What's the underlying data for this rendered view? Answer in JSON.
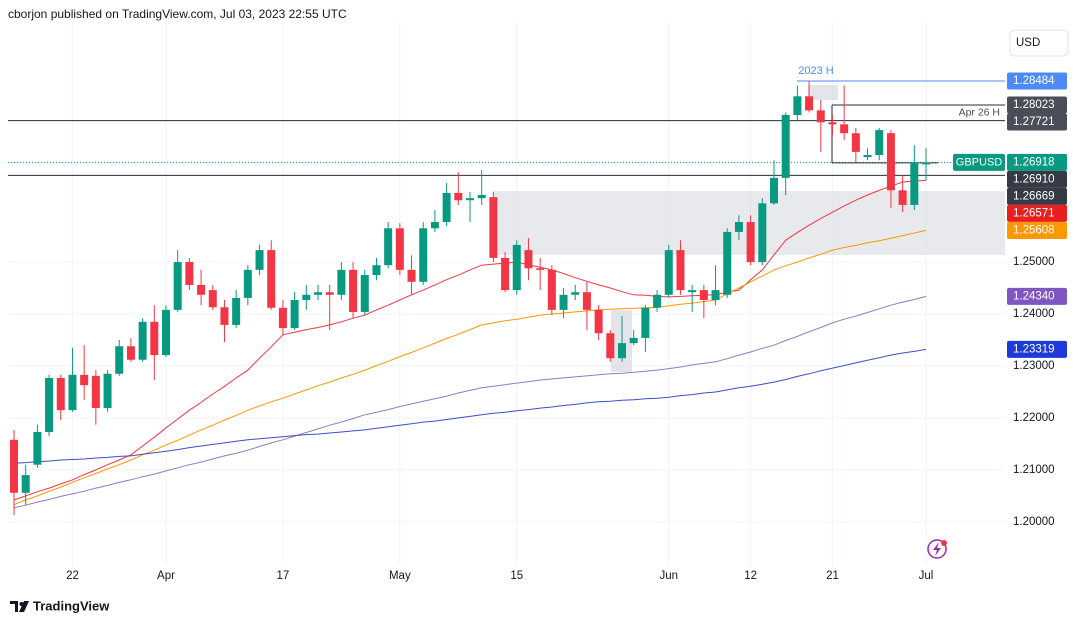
{
  "header": {
    "title": "cborjon published on TradingView.com, Jul 03, 2023 22:55 UTC"
  },
  "footer": {
    "brand": "TradingView"
  },
  "chart_data": {
    "type": "candlestick",
    "symbol": "GBPUSD",
    "currency": "USD",
    "categories": [
      null,
      null,
      null,
      null,
      null,
      "22",
      null,
      null,
      null,
      null,
      null,
      null,
      null,
      "Apr",
      null,
      null,
      null,
      null,
      null,
      null,
      null,
      null,
      null,
      "17",
      null,
      null,
      null,
      null,
      null,
      null,
      null,
      null,
      null,
      "May",
      null,
      null,
      null,
      null,
      null,
      null,
      null,
      null,
      null,
      "15",
      null,
      null,
      null,
      null,
      null,
      null,
      null,
      null,
      null,
      null,
      null,
      null,
      "Jun",
      null,
      null,
      null,
      null,
      null,
      null,
      "12",
      null,
      null,
      null,
      null,
      null,
      null,
      "21",
      null,
      null,
      null,
      null,
      null,
      null,
      null,
      "Jul"
    ],
    "open": [
      1.2158,
      1.2056,
      1.211,
      1.2173,
      1.2277,
      1.2215,
      1.2283,
      1.2281,
      1.2219,
      1.2285,
      1.2338,
      1.2312,
      1.2385,
      1.2321,
      1.2408,
      1.25,
      1.2456,
      1.2446,
      1.2413,
      1.2379,
      1.2431,
      1.2485,
      1.2523,
      1.2412,
      1.2373,
      1.2427,
      1.2437,
      1.2442,
      1.2437,
      1.2485,
      1.2404,
      1.2475,
      1.2494,
      1.2565,
      1.2485,
      1.2462,
      1.2565,
      1.2577,
      1.2633,
      1.2619,
      1.2623,
      1.2625,
      1.2508,
      1.2446,
      1.2523,
      1.2488,
      1.2485,
      1.2408,
      1.2437,
      1.2442,
      1.2408,
      1.2363,
      1.2315,
      1.2344,
      1.2354,
      1.2412,
      1.2437,
      1.2523,
      1.2442,
      1.2446,
      1.2427,
      1.2437,
      1.2558,
      1.2577,
      1.25,
      1.2613,
      1.2662,
      1.2783,
      1.2819,
      1.2792,
      1.2769,
      1.2765,
      1.2748,
      1.2702,
      1.2706,
      1.2748,
      1.2638,
      1.261,
      1.2688
    ],
    "high": [
      1.2177,
      1.211,
      1.2187,
      1.2283,
      1.2283,
      1.2335,
      1.234,
      1.2292,
      1.2292,
      1.235,
      1.2354,
      1.2392,
      1.2417,
      1.2417,
      1.2523,
      1.2508,
      1.2485,
      1.2456,
      1.2427,
      1.2446,
      1.2494,
      1.2533,
      1.2542,
      1.2427,
      1.2442,
      1.2456,
      1.2456,
      1.2456,
      1.25,
      1.25,
      1.2485,
      1.2508,
      1.2577,
      1.2575,
      1.2513,
      1.2577,
      1.26,
      1.2652,
      1.2673,
      1.2635,
      1.2677,
      1.2635,
      1.2519,
      1.2542,
      1.2546,
      1.2508,
      1.2494,
      1.245,
      1.2456,
      1.2462,
      1.2417,
      1.2369,
      1.2396,
      1.2369,
      1.2417,
      1.2446,
      1.2533,
      1.2542,
      1.2456,
      1.2456,
      1.2494,
      1.2565,
      1.259,
      1.259,
      1.2623,
      1.2696,
      1.2788,
      1.284,
      1.2848,
      1.2812,
      1.2783,
      1.284,
      1.2758,
      1.2719,
      1.2758,
      1.2754,
      1.2667,
      1.2725,
      1.2719
    ],
    "low": [
      1.2013,
      1.2033,
      1.2104,
      1.2165,
      1.2196,
      1.2212,
      1.2235,
      1.2187,
      1.2212,
      1.2281,
      1.2308,
      1.2308,
      1.2273,
      1.2317,
      1.2404,
      1.2446,
      1.2417,
      1.2408,
      1.2346,
      1.2373,
      1.2417,
      1.2475,
      1.2408,
      1.236,
      1.2369,
      1.2408,
      1.2427,
      1.2369,
      1.2427,
      1.2392,
      1.2398,
      1.2465,
      1.2488,
      1.2475,
      1.2437,
      1.2456,
      1.2558,
      1.2569,
      1.261,
      1.2577,
      1.261,
      1.25,
      1.2442,
      1.2437,
      1.2465,
      1.2446,
      1.2398,
      1.2392,
      1.2427,
      1.2369,
      1.235,
      1.2308,
      1.2308,
      1.234,
      1.2327,
      1.2404,
      1.2431,
      1.2437,
      1.2404,
      1.2392,
      1.2417,
      1.2431,
      1.2542,
      1.2494,
      1.2494,
      1.261,
      1.2629,
      1.2773,
      1.2788,
      1.2712,
      1.2744,
      1.2735,
      1.2692,
      1.2696,
      1.2696,
      1.2604,
      1.2596,
      1.26,
      1.2658
    ],
    "close": [
      1.2056,
      1.209,
      1.2173,
      1.2277,
      1.2215,
      1.2283,
      1.2263,
      1.2219,
      1.2285,
      1.2338,
      1.2312,
      1.2385,
      1.2321,
      1.2408,
      1.25,
      1.2456,
      1.2437,
      1.2413,
      1.2379,
      1.2431,
      1.2485,
      1.2523,
      1.2412,
      1.2373,
      1.2427,
      1.2437,
      1.2442,
      1.2437,
      1.2485,
      1.2404,
      1.2475,
      1.2494,
      1.2565,
      1.2485,
      1.2462,
      1.2565,
      1.2577,
      1.2633,
      1.2619,
      1.2623,
      1.2629,
      1.2508,
      1.2446,
      1.2533,
      1.2488,
      1.2485,
      1.2408,
      1.2437,
      1.2442,
      1.2408,
      1.2363,
      1.2315,
      1.2344,
      1.2354,
      1.2412,
      1.2437,
      1.2523,
      1.2446,
      1.2446,
      1.2427,
      1.2446,
      1.2558,
      1.2577,
      1.25,
      1.2613,
      1.2662,
      1.2783,
      1.2819,
      1.2792,
      1.2769,
      1.2765,
      1.2748,
      1.2712,
      1.2706,
      1.2754,
      1.2638,
      1.261,
      1.2692,
      1.26918
    ],
    "up_color": "#089981",
    "down_color": "#f23645",
    "moving_averages": [
      {
        "color": "#f23645",
        "values": [
          1.2042,
          1.205,
          1.2058,
          1.2065,
          1.2073,
          1.2081,
          1.2091,
          1.21,
          1.211,
          1.2119,
          1.2129,
          1.2146,
          1.2163,
          1.2181,
          1.2198,
          1.2215,
          1.223,
          1.2246,
          1.2261,
          1.2277,
          1.2292,
          1.2315,
          1.2337,
          1.236,
          1.2365,
          1.237,
          1.2374,
          1.2379,
          1.2385,
          1.2392,
          1.2398,
          1.2408,
          1.2417,
          1.2427,
          1.2437,
          1.2446,
          1.2456,
          1.2466,
          1.2475,
          1.2485,
          1.2494,
          1.2496,
          1.2498,
          1.25,
          1.2495,
          1.249,
          1.2485,
          1.2478,
          1.247,
          1.2463,
          1.2456,
          1.245,
          1.2443,
          1.2437,
          1.2436,
          1.2434,
          1.2433,
          1.2434,
          1.2435,
          1.2436,
          1.2437,
          1.2442,
          1.2446,
          1.2466,
          1.2485,
          1.2514,
          1.2542,
          1.2557,
          1.2571,
          1.2584,
          1.2596,
          1.2608,
          1.2619,
          1.2629,
          1.2638,
          1.2646,
          1.2654,
          1.2656,
          1.2657
        ]
      },
      {
        "color": "#ff9800",
        "values": [
          1.2033,
          1.2042,
          1.205,
          1.2059,
          1.2067,
          1.2076,
          1.2085,
          1.2093,
          1.2102,
          1.211,
          1.2119,
          1.2129,
          1.2138,
          1.2148,
          1.2157,
          1.2167,
          1.2177,
          1.2186,
          1.2196,
          1.2205,
          1.2215,
          1.2223,
          1.2231,
          1.2238,
          1.2246,
          1.2254,
          1.2262,
          1.2269,
          1.2277,
          1.2284,
          1.2292,
          1.2301,
          1.2309,
          1.2318,
          1.2326,
          1.2335,
          1.2344,
          1.2353,
          1.2361,
          1.237,
          1.2379,
          1.2383,
          1.2387,
          1.239,
          1.2394,
          1.2398,
          1.24,
          1.2402,
          1.2404,
          1.2406,
          1.2408,
          1.2409,
          1.241,
          1.2411,
          1.2412,
          1.2413,
          1.2416,
          1.2419,
          1.2421,
          1.2424,
          1.2427,
          1.2439,
          1.245,
          1.2462,
          1.2473,
          1.2485,
          1.2493,
          1.25,
          1.2508,
          1.2515,
          1.2523,
          1.2528,
          1.2532,
          1.2537,
          1.2541,
          1.2546,
          1.2551,
          1.2556,
          1.2561
        ]
      },
      {
        "color": "#8e7cc3",
        "values": [
          1.2027,
          1.2032,
          1.2038,
          1.2043,
          1.2049,
          1.2054,
          1.2059,
          1.2065,
          1.207,
          1.2076,
          1.2081,
          1.2087,
          1.2092,
          1.2098,
          1.2104,
          1.211,
          1.2115,
          1.2121,
          1.2127,
          1.2132,
          1.2138,
          1.2145,
          1.2152,
          1.2158,
          1.2165,
          1.2172,
          1.2179,
          1.2186,
          1.2192,
          1.2199,
          1.2206,
          1.2211,
          1.2216,
          1.2222,
          1.2227,
          1.2232,
          1.2237,
          1.2242,
          1.2248,
          1.2253,
          1.2258,
          1.2261,
          1.2264,
          1.2267,
          1.227,
          1.2273,
          1.2275,
          1.2277,
          1.2279,
          1.2281,
          1.2283,
          1.2285,
          1.2286,
          1.2288,
          1.229,
          1.2292,
          1.2295,
          1.2298,
          1.2302,
          1.2305,
          1.2308,
          1.2314,
          1.2321,
          1.2327,
          1.2334,
          1.234,
          1.2349,
          1.2357,
          1.2366,
          1.2374,
          1.2383,
          1.239,
          1.2396,
          1.2403,
          1.241,
          1.2417,
          1.2423,
          1.2428,
          1.2434
        ]
      },
      {
        "color": "#3d4fc4",
        "values": [
          1.2113,
          1.2114,
          1.2116,
          1.2117,
          1.2119,
          1.212,
          1.2121,
          1.2123,
          1.2124,
          1.2126,
          1.2127,
          1.213,
          1.2133,
          1.2136,
          1.2139,
          1.2143,
          1.2146,
          1.2149,
          1.2152,
          1.2155,
          1.2158,
          1.216,
          1.2162,
          1.2164,
          1.2166,
          1.2168,
          1.2169,
          1.2171,
          1.2173,
          1.2175,
          1.2177,
          1.218,
          1.2183,
          1.2186,
          1.2189,
          1.2192,
          1.2194,
          1.2197,
          1.22,
          1.2203,
          1.2206,
          1.2209,
          1.2211,
          1.2214,
          1.2216,
          1.2219,
          1.2221,
          1.2224,
          1.2226,
          1.2229,
          1.2231,
          1.2232,
          1.2234,
          1.2235,
          1.2237,
          1.2238,
          1.224,
          1.2243,
          1.2245,
          1.2248,
          1.225,
          1.2254,
          1.2258,
          1.2261,
          1.2265,
          1.2269,
          1.2274,
          1.228,
          1.2285,
          1.2291,
          1.2296,
          1.2301,
          1.2306,
          1.2311,
          1.2316,
          1.2321,
          1.2325,
          1.2328,
          1.2332
        ]
      }
    ],
    "price_tags": [
      {
        "value": 1.28484,
        "label": "1.28484",
        "color": "#4c8bf5"
      },
      {
        "value": 1.28023,
        "label": "1.28023",
        "color": "#4a4e59"
      },
      {
        "value": 1.27721,
        "label": "1.27721",
        "color": "#4a4e59"
      },
      {
        "value": 1.26918,
        "label": "1.26918",
        "color": "#089981"
      },
      {
        "value": 1.2691,
        "label": "1.26910",
        "color": "#363a45"
      },
      {
        "value": 1.26669,
        "label": "1.26669",
        "color": "#363a45"
      },
      {
        "value": 1.26571,
        "label": "1.26571",
        "color": "#e91e1e"
      },
      {
        "value": 1.25608,
        "label": "1.25608",
        "color": "#ff9800"
      },
      {
        "value": 1.2434,
        "label": "1.24340",
        "color": "#7e57c2"
      },
      {
        "value": 1.23319,
        "label": "1.23319",
        "color": "#1e3ad8"
      }
    ],
    "annotations": [
      {
        "text": "2023 H",
        "color": "#4c8bf5"
      },
      {
        "text": "Apr 26 H",
        "color": "#4a4e59"
      }
    ],
    "ylim": [
      1.1917,
      1.2962
    ],
    "yticks": [
      {
        "value": 1.2,
        "label": "1.20000"
      },
      {
        "value": 1.21,
        "label": "1.21000"
      },
      {
        "value": 1.22,
        "label": "1.22000"
      },
      {
        "value": 1.23,
        "label": "1.23000"
      },
      {
        "value": 1.24,
        "label": "1.24000"
      },
      {
        "value": 1.25,
        "label": "1.25000"
      }
    ],
    "grid": true
  }
}
